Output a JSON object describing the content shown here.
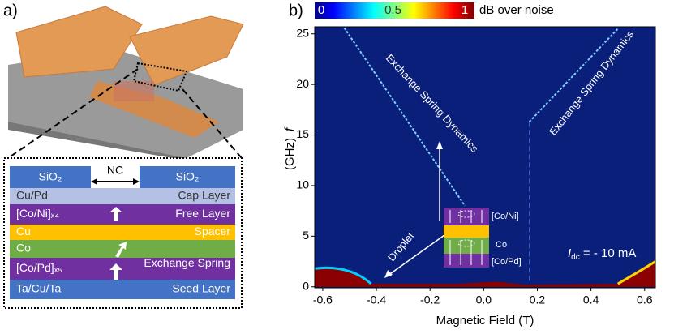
{
  "panel_a": {
    "label": "a)",
    "stack": {
      "left_top": "SiO₂",
      "gap": "NC",
      "right_top": "SiO₂",
      "layers": [
        {
          "material": "Cu/Pd",
          "role": "Cap Layer"
        },
        {
          "material": "[Co/Ni]ₓ₄",
          "role": "Free Layer"
        },
        {
          "material": "Cu",
          "role": "Spacer"
        },
        {
          "material": "Co",
          "role": ""
        },
        {
          "material": "[Co/Pd]ₓ₅",
          "role": "Exchange Spring"
        },
        {
          "material": "Ta/Cu/Ta",
          "role": "Seed Layer"
        }
      ]
    }
  },
  "chart_data": {
    "type": "heatmap",
    "label": "b)",
    "colorbar": {
      "lim": [
        0,
        1
      ],
      "ticks": [
        0,
        0.5,
        1
      ],
      "label": "dB over noise"
    },
    "xlabel": "Magnetic Field (T)",
    "ylabel_symbol": "f",
    "ylabel_unit": "(GHz)",
    "xlim": [
      -0.63,
      0.64
    ],
    "ylim": [
      -0.1,
      25.7
    ],
    "xticks": [
      -0.6,
      -0.4,
      -0.2,
      {
        "value": 0,
        "label": "0.0"
      },
      0.2,
      0.4,
      0.6
    ],
    "yticks": [
      0,
      5,
      10,
      15,
      20,
      25
    ],
    "annotations": {
      "left_branch": "Exchange Spring Dynamics",
      "right_branch": "Exchange Spring Dynamics",
      "droplet": "Droplet",
      "current_symbol": "I",
      "current_subscript": "dc",
      "current_value": " = - 10 mA",
      "inset_top": "[Co/Ni]",
      "inset_mid": "Co",
      "inset_bottom": "[Co/Pd]"
    }
  }
}
